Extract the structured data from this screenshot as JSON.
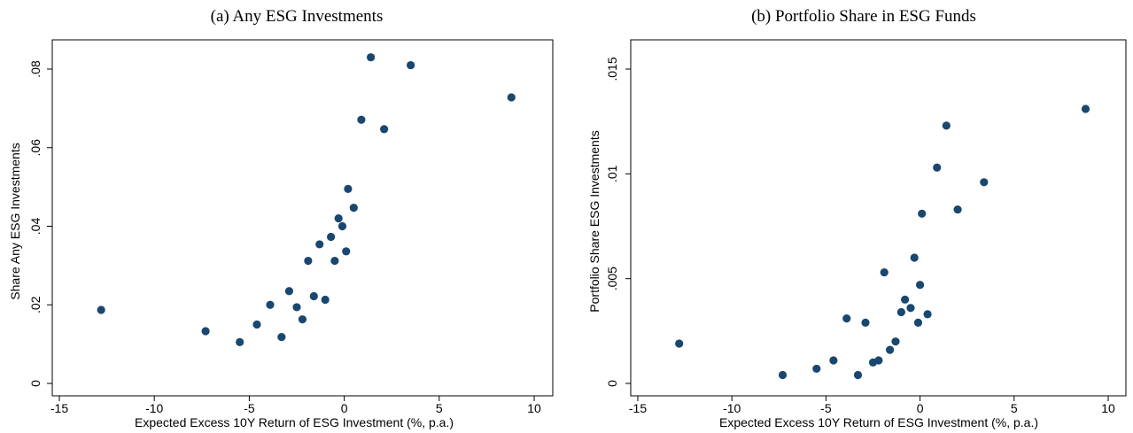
{
  "chart_data": [
    {
      "type": "scatter",
      "title": "(a)  Any ESG Investments",
      "xlabel": "Expected Excess 10Y Return of ESG Investment (%, p.a.)",
      "ylabel": "Share Any ESG Investments",
      "xlim": [
        -15,
        10
      ],
      "ylim": [
        0,
        0.085
      ],
      "xticks": [
        -15,
        -10,
        -5,
        0,
        5,
        10
      ],
      "xtick_labels": [
        "-15",
        "-10",
        "-5",
        "0",
        "5",
        "10"
      ],
      "yticks": [
        0,
        0.02,
        0.04,
        0.06,
        0.08
      ],
      "ytick_labels": [
        "0",
        ".02",
        ".04",
        ".06",
        ".08"
      ],
      "grid": false,
      "marker_color": "#1a476f",
      "points": [
        [
          -12.8,
          0.0187
        ],
        [
          -7.3,
          0.0133
        ],
        [
          -5.5,
          0.0105
        ],
        [
          -4.6,
          0.015
        ],
        [
          -3.9,
          0.02
        ],
        [
          -3.3,
          0.0118
        ],
        [
          -2.9,
          0.0235
        ],
        [
          -2.5,
          0.0194
        ],
        [
          -2.2,
          0.0163
        ],
        [
          -1.9,
          0.0312
        ],
        [
          -1.6,
          0.0222
        ],
        [
          -1.3,
          0.0354
        ],
        [
          -1.0,
          0.0213
        ],
        [
          -0.7,
          0.0373
        ],
        [
          -0.5,
          0.0312
        ],
        [
          -0.3,
          0.042
        ],
        [
          -0.1,
          0.04
        ],
        [
          0.1,
          0.0336
        ],
        [
          0.2,
          0.0495
        ],
        [
          0.5,
          0.0447
        ],
        [
          0.9,
          0.0671
        ],
        [
          1.4,
          0.083
        ],
        [
          2.1,
          0.0647
        ],
        [
          3.5,
          0.081
        ],
        [
          8.8,
          0.0728
        ]
      ]
    },
    {
      "type": "scatter",
      "title": "(b)  Portfolio Share in ESG Funds",
      "xlabel": "Expected Excess 10Y Return of ESG Investment (%, p.a.)",
      "ylabel": "Portfolio Share ESG Investments",
      "xlim": [
        -15,
        10
      ],
      "ylim": [
        0,
        0.015
      ],
      "xticks": [
        -15,
        -10,
        -5,
        0,
        5,
        10
      ],
      "xtick_labels": [
        "-15",
        "-10",
        "-5",
        "0",
        "5",
        "10"
      ],
      "yticks": [
        0,
        0.005,
        0.01,
        0.015
      ],
      "ytick_labels": [
        "0",
        ".005",
        ".01",
        ".015"
      ],
      "grid": false,
      "marker_color": "#1a476f",
      "points": [
        [
          -12.8,
          0.0019
        ],
        [
          -7.3,
          0.0004
        ],
        [
          -5.5,
          0.0007
        ],
        [
          -4.6,
          0.0011
        ],
        [
          -3.9,
          0.0031
        ],
        [
          -3.3,
          0.0004
        ],
        [
          -2.9,
          0.0029
        ],
        [
          -2.5,
          0.001
        ],
        [
          -2.2,
          0.0011
        ],
        [
          -1.9,
          0.0053
        ],
        [
          -1.6,
          0.0016
        ],
        [
          -1.3,
          0.002
        ],
        [
          -1.0,
          0.0034
        ],
        [
          -0.8,
          0.004
        ],
        [
          -0.5,
          0.0036
        ],
        [
          -0.3,
          0.006
        ],
        [
          -0.1,
          0.0029
        ],
        [
          0.0,
          0.0047
        ],
        [
          0.1,
          0.0081
        ],
        [
          0.4,
          0.0033
        ],
        [
          0.9,
          0.0103
        ],
        [
          1.4,
          0.0123
        ],
        [
          2.0,
          0.0083
        ],
        [
          3.4,
          0.0096
        ],
        [
          8.8,
          0.0131
        ]
      ]
    }
  ]
}
